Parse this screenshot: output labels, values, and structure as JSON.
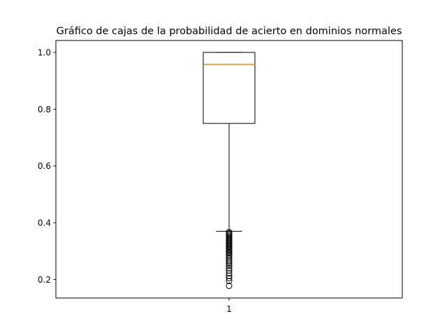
{
  "chart_data": {
    "type": "box",
    "title": "Gráfico de cajas de la probabilidad de acierto en dominios normales",
    "xlabel": "",
    "ylabel": "",
    "categories": [
      "1"
    ],
    "ylim": [
      0.135,
      1.042
    ],
    "yticks": [
      0.2,
      0.4,
      0.6,
      0.8,
      1.0
    ],
    "ytick_labels": [
      "0.2",
      "0.4",
      "0.6",
      "0.8",
      "1.0"
    ],
    "grid": false,
    "box": {
      "whisker_low": 0.37,
      "q1": 0.75,
      "median": 0.958,
      "q3": 1.0,
      "whisker_high": 1.0,
      "outliers": [
        0.367,
        0.363,
        0.36,
        0.356,
        0.352,
        0.348,
        0.344,
        0.34,
        0.336,
        0.332,
        0.328,
        0.324,
        0.32,
        0.316,
        0.312,
        0.308,
        0.304,
        0.3,
        0.296,
        0.292,
        0.287,
        0.282,
        0.275,
        0.268,
        0.262,
        0.255,
        0.248,
        0.24,
        0.232,
        0.222,
        0.213,
        0.205,
        0.195,
        0.178
      ]
    },
    "colors": {
      "box": "#000000",
      "median": "#ff7f0e",
      "outlier": "#000000"
    }
  }
}
